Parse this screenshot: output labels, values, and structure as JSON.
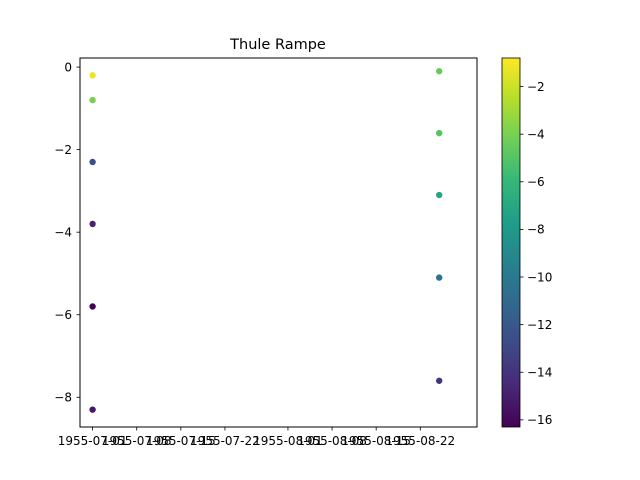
{
  "chart_data": {
    "type": "scatter",
    "title": "Thule Rampe",
    "xlabel": "",
    "ylabel": "",
    "x_is_date": true,
    "xlim": [
      "1955-06-29",
      "1955-08-31"
    ],
    "ylim": [
      -8.72,
      0.22
    ],
    "x_ticks": [
      {
        "value": "1955-07-01",
        "label": "1955-07-01"
      },
      {
        "value": "1955-07-08",
        "label": "1955-07-08"
      },
      {
        "value": "1955-07-15",
        "label": "1955-07-15"
      },
      {
        "value": "1955-07-22",
        "label": "1955-07-22"
      },
      {
        "value": "1955-08-01",
        "label": "1955-08-01"
      },
      {
        "value": "1955-08-08",
        "label": "1955-08-08"
      },
      {
        "value": "1955-08-15",
        "label": "1955-08-15"
      },
      {
        "value": "1955-08-22",
        "label": "1955-08-22"
      }
    ],
    "y_ticks": [
      {
        "value": 0,
        "label": "0"
      },
      {
        "value": -2,
        "label": "−2"
      },
      {
        "value": -4,
        "label": "−4"
      },
      {
        "value": -6,
        "label": "−6"
      },
      {
        "value": -8,
        "label": "−8"
      }
    ],
    "colorbar": {
      "colormap": "viridis",
      "range": [
        -16.3,
        -0.8
      ],
      "ticks": [
        {
          "value": -2,
          "label": "−2"
        },
        {
          "value": -4,
          "label": "−4"
        },
        {
          "value": -6,
          "label": "−6"
        },
        {
          "value": -8,
          "label": "−8"
        },
        {
          "value": -10,
          "label": "−10"
        },
        {
          "value": -12,
          "label": "−12"
        },
        {
          "value": -14,
          "label": "−14"
        },
        {
          "value": -16,
          "label": "−16"
        }
      ]
    },
    "points": [
      {
        "x": "1955-07-01",
        "y": -0.2,
        "c": -1.2
      },
      {
        "x": "1955-07-01",
        "y": -0.8,
        "c": -4.0
      },
      {
        "x": "1955-07-01",
        "y": -2.3,
        "c": -12.5
      },
      {
        "x": "1955-07-01",
        "y": -3.8,
        "c": -14.8
      },
      {
        "x": "1955-07-01",
        "y": -5.8,
        "c": -16.2
      },
      {
        "x": "1955-07-01",
        "y": -8.3,
        "c": -15.3
      },
      {
        "x": "1955-08-25",
        "y": -0.1,
        "c": -4.5
      },
      {
        "x": "1955-08-25",
        "y": -1.6,
        "c": -5.0
      },
      {
        "x": "1955-08-25",
        "y": -3.1,
        "c": -7.2
      },
      {
        "x": "1955-08-25",
        "y": -5.1,
        "c": -10.5
      },
      {
        "x": "1955-08-25",
        "y": -7.6,
        "c": -14.0
      }
    ],
    "grid": false,
    "legend": "none"
  }
}
